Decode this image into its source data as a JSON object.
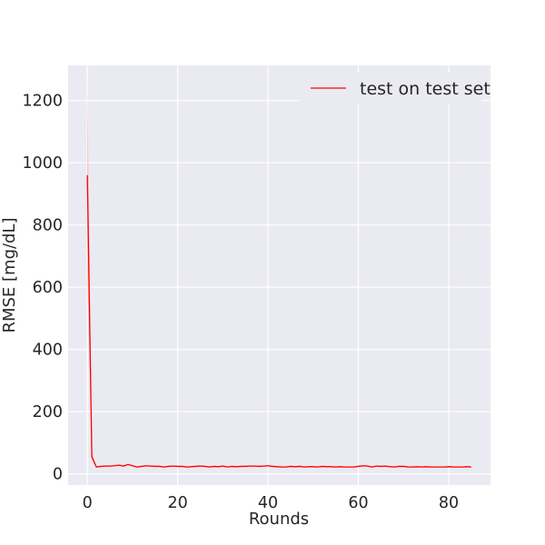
{
  "chart_data": {
    "type": "line",
    "title": "",
    "xlabel": "Rounds",
    "ylabel": "RMSE [mg/dL]",
    "xlim": [
      -4.25,
      89.25
    ],
    "ylim": [
      -36,
      1313
    ],
    "xticks": [
      0,
      20,
      40,
      60,
      80
    ],
    "yticks": [
      0,
      200,
      400,
      600,
      800,
      1000,
      1200
    ],
    "grid": true,
    "background": "#eaeaf2",
    "legend_position": "upper-right",
    "series": [
      {
        "name": "test on test set",
        "color": "#ff0000",
        "band_color": "#ffb3b3",
        "x": [
          0,
          1,
          2,
          3,
          4,
          5,
          6,
          7,
          8,
          9,
          10,
          11,
          12,
          13,
          14,
          15,
          16,
          17,
          18,
          19,
          20,
          21,
          22,
          23,
          24,
          25,
          26,
          27,
          28,
          29,
          30,
          31,
          32,
          33,
          34,
          35,
          36,
          37,
          38,
          39,
          40,
          41,
          42,
          43,
          44,
          45,
          46,
          47,
          48,
          49,
          50,
          51,
          52,
          53,
          54,
          55,
          56,
          57,
          58,
          59,
          60,
          61,
          62,
          63,
          64,
          65,
          66,
          67,
          68,
          69,
          70,
          71,
          72,
          73,
          74,
          75,
          76,
          77,
          78,
          79,
          80,
          81,
          82,
          83,
          84,
          85
        ],
        "values": [
          960,
          55,
          22,
          24,
          25,
          25,
          26,
          28,
          25,
          30,
          26,
          22,
          24,
          26,
          25,
          24,
          24,
          22,
          24,
          25,
          24,
          24,
          22,
          23,
          24,
          25,
          24,
          22,
          24,
          23,
          25,
          22,
          24,
          23,
          24,
          24,
          25,
          25,
          24,
          25,
          26,
          24,
          23,
          22,
          22,
          24,
          23,
          24,
          22,
          23,
          23,
          22,
          24,
          23,
          23,
          22,
          23,
          22,
          22,
          22,
          24,
          26,
          25,
          22,
          25,
          24,
          25,
          23,
          22,
          24,
          24,
          22,
          22,
          23,
          22,
          23,
          22,
          22,
          22,
          22,
          23,
          22,
          22,
          22,
          23,
          22
        ],
        "upper": [
          1250,
          70,
          25,
          26,
          27,
          27,
          28,
          30,
          28,
          32,
          28,
          24,
          26,
          28,
          27,
          26,
          26,
          24,
          26,
          27,
          26,
          26,
          24,
          25,
          26,
          27,
          26,
          24,
          26,
          25,
          27,
          24,
          26,
          25,
          26,
          26,
          27,
          27,
          26,
          27,
          28,
          26,
          25,
          24,
          24,
          26,
          25,
          26,
          24,
          25,
          25,
          24,
          26,
          25,
          25,
          24,
          25,
          24,
          24,
          24,
          26,
          28,
          27,
          24,
          27,
          26,
          27,
          25,
          24,
          26,
          26,
          24,
          24,
          25,
          24,
          25,
          24,
          24,
          24,
          24,
          25,
          24,
          24,
          24,
          25,
          24
        ],
        "lower": [
          640,
          45,
          20,
          22,
          23,
          23,
          24,
          26,
          23,
          28,
          24,
          20,
          22,
          24,
          23,
          22,
          22,
          20,
          22,
          23,
          22,
          22,
          20,
          21,
          22,
          23,
          22,
          20,
          22,
          21,
          23,
          20,
          22,
          21,
          22,
          22,
          23,
          23,
          22,
          23,
          24,
          22,
          21,
          20,
          20,
          22,
          21,
          22,
          20,
          21,
          21,
          20,
          22,
          21,
          21,
          20,
          21,
          20,
          20,
          20,
          22,
          24,
          23,
          20,
          23,
          22,
          23,
          21,
          20,
          22,
          22,
          20,
          20,
          21,
          20,
          21,
          20,
          20,
          20,
          20,
          21,
          20,
          20,
          20,
          21,
          20
        ]
      }
    ]
  }
}
